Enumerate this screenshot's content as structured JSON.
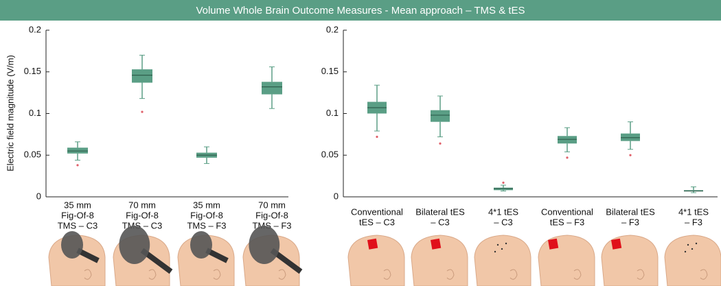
{
  "header": {
    "title": "Volume Whole Brain Outcome Measures - Mean approach – TMS & tES"
  },
  "chart_data": [
    {
      "type": "box",
      "ylabel": "Electric field magnitude (V/m)",
      "color": "#5a9e85",
      "median_color": "#2f5f4d",
      "flier_color": "#e0606a",
      "ylim": [
        0,
        0.2
      ],
      "yticks": [
        0,
        0.05,
        0.1,
        0.15,
        0.2
      ],
      "categories": [
        [
          "35 mm",
          "Fig-Of-8",
          "TMS – C3"
        ],
        [
          "70 mm",
          "Fig-Of-8",
          "TMS – C3"
        ],
        [
          "35 mm",
          "Fig-Of-8",
          "TMS – F3"
        ],
        [
          "70 mm",
          "Fig-Of-8",
          "TMS – F3"
        ]
      ],
      "boxes": [
        {
          "whislo": 0.044,
          "q1": 0.052,
          "med": 0.055,
          "q3": 0.059,
          "whishi": 0.066,
          "fliers": [
            0.038
          ]
        },
        {
          "whislo": 0.118,
          "q1": 0.137,
          "med": 0.146,
          "q3": 0.153,
          "whishi": 0.17,
          "fliers": [
            0.102
          ]
        },
        {
          "whislo": 0.04,
          "q1": 0.047,
          "med": 0.05,
          "q3": 0.053,
          "whishi": 0.06,
          "fliers": []
        },
        {
          "whislo": 0.106,
          "q1": 0.123,
          "med": 0.132,
          "q3": 0.138,
          "whishi": 0.156,
          "fliers": []
        }
      ]
    },
    {
      "type": "box",
      "color": "#5a9e85",
      "median_color": "#2f5f4d",
      "flier_color": "#e0606a",
      "ylim": [
        0,
        0.2
      ],
      "yticks": [
        0,
        0.05,
        0.1,
        0.15,
        0.2
      ],
      "categories": [
        [
          "Conventional",
          "tES – C3"
        ],
        [
          "Bilateral tES",
          "– C3"
        ],
        [
          "4*1 tES",
          "– C3"
        ],
        [
          "Conventional",
          "tES – F3"
        ],
        [
          "Bilateral tES",
          "– F3"
        ],
        [
          "4*1 tES",
          "– F3"
        ]
      ],
      "boxes": [
        {
          "whislo": 0.079,
          "q1": 0.1,
          "med": 0.107,
          "q3": 0.114,
          "whishi": 0.134,
          "fliers": [
            0.072
          ]
        },
        {
          "whislo": 0.072,
          "q1": 0.09,
          "med": 0.098,
          "q3": 0.104,
          "whishi": 0.121,
          "fliers": [
            0.064
          ]
        },
        {
          "whislo": 0.007,
          "q1": 0.008,
          "med": 0.01,
          "q3": 0.011,
          "whishi": 0.014,
          "fliers": [
            0.017
          ]
        },
        {
          "whislo": 0.054,
          "q1": 0.064,
          "med": 0.069,
          "q3": 0.073,
          "whishi": 0.083,
          "fliers": [
            0.047
          ]
        },
        {
          "whislo": 0.057,
          "q1": 0.067,
          "med": 0.071,
          "q3": 0.076,
          "whishi": 0.09,
          "fliers": [
            0.05
          ]
        },
        {
          "whislo": 0.005,
          "q1": 0.007,
          "med": 0.007,
          "q3": 0.008,
          "whishi": 0.012,
          "fliers": []
        }
      ]
    }
  ]
}
